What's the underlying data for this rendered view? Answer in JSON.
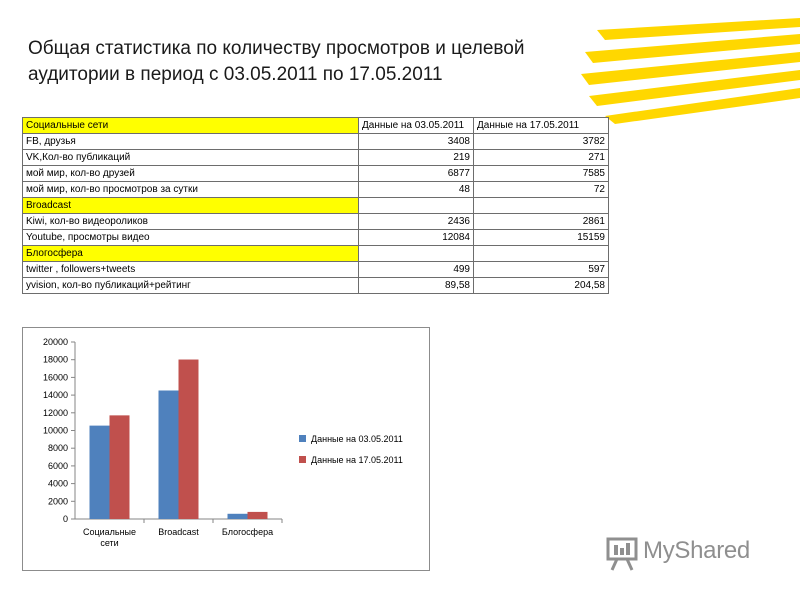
{
  "title": "Общая статистика  по количеству просмотров и целевой аудитории в период с 03.05.2011 по 17.05.2011",
  "colors": {
    "series1": "#4f81bd",
    "series2": "#c0504d",
    "highlight": "#ffff00",
    "logo": "#ffd700"
  },
  "table": {
    "rows": [
      {
        "cells": [
          "Социальные сети",
          "Данные на 03.05.2011",
          "Данные на 17.05.2011"
        ],
        "highlight": true,
        "header": true
      },
      {
        "cells": [
          "FB, друзья",
          "3408",
          "3782"
        ]
      },
      {
        "cells": [
          "VK,Кол-во публикаций",
          "219",
          "271"
        ]
      },
      {
        "cells": [
          "мой мир, кол-во друзей",
          "6877",
          "7585"
        ]
      },
      {
        "cells": [
          "мой мир, кол-во просмотров за сутки",
          "48",
          "72"
        ]
      },
      {
        "cells": [
          "Broadcast",
          "",
          ""
        ],
        "highlight": true
      },
      {
        "cells": [
          "Kiwi, кол-во видеороликов",
          "2436",
          "2861"
        ]
      },
      {
        "cells": [
          "Youtube, просмотры видео",
          "12084",
          "15159"
        ]
      },
      {
        "cells": [
          "Блогосфера",
          "",
          ""
        ],
        "highlight": true
      },
      {
        "cells": [
          "twitter , followers+tweets",
          "499",
          "597"
        ]
      },
      {
        "cells": [
          "yvision, кол-во публикаций+рейтинг",
          "89,58",
          "204,58"
        ]
      }
    ]
  },
  "chart_data": {
    "type": "bar",
    "categories": [
      "Социальные сети",
      "Broadcast",
      "Блогосфера"
    ],
    "series": [
      {
        "name": "Данные на 03.05.2011",
        "values": [
          10552,
          14520,
          589
        ]
      },
      {
        "name": "Данные на 17.05.2011",
        "values": [
          11710,
          18020,
          802
        ]
      }
    ],
    "ylim": [
      0,
      20000
    ],
    "yticks": [
      0,
      2000,
      4000,
      6000,
      8000,
      10000,
      12000,
      14000,
      16000,
      18000,
      20000
    ],
    "legend": "right",
    "grid": false
  },
  "watermark": {
    "text": "MyShared"
  }
}
